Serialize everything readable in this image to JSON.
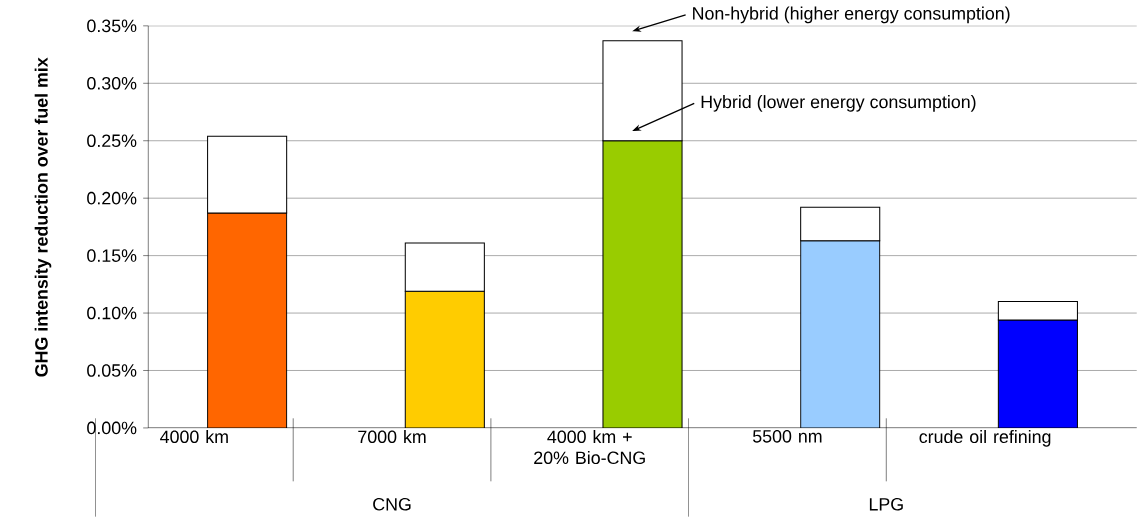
{
  "chart_data": {
    "type": "bar",
    "stacked": true,
    "ylabel": "GHG intensity reduction over fuel mix",
    "categories": [
      "4000 km",
      "7000 km",
      "4000 km + 20% Bio-CNG",
      "5500 nm",
      "crude oil refining"
    ],
    "series": [
      {
        "colors": [
          "#ff6600",
          "#ffcc00",
          "#99cc00",
          "#99ccff",
          "#0000ff"
        ],
        "values": [
          0.187,
          0.119,
          0.25,
          0.163,
          0.094
        ]
      },
      {
        "color": "#ffffff",
        "values": [
          0.067,
          0.042,
          0.087,
          0.029,
          0.016
        ]
      }
    ],
    "ylim": [
      0,
      0.35
    ],
    "yticks": [
      {
        "value": 0,
        "label": "0.00%"
      },
      {
        "value": 0.05,
        "label": "0.05%"
      },
      {
        "value": 0.1,
        "label": "0.10%"
      },
      {
        "value": 0.15,
        "label": "0.15%"
      },
      {
        "value": 0.2,
        "label": "0.20%"
      },
      {
        "value": 0.25,
        "label": "0.25%"
      },
      {
        "value": 0.3,
        "label": "0.30%"
      },
      {
        "value": 0.35,
        "label": "0.35%"
      }
    ],
    "grid": "y",
    "annotations": [
      "Non-hybrid (higher energy consumption)",
      "Hybrid (lower energy consumption)",
      "CNG",
      "LPG"
    ]
  }
}
